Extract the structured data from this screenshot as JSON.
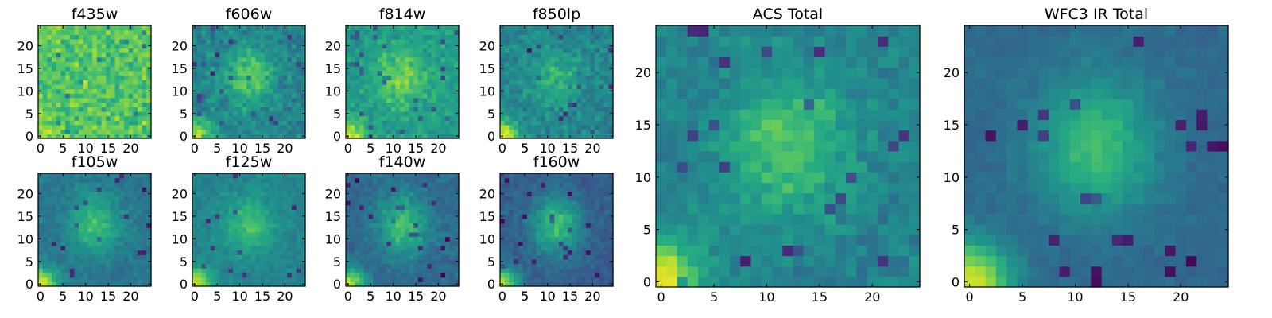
{
  "chart_data": [
    {
      "type": "heatmap",
      "title": "f435w",
      "grid": [
        25,
        25
      ],
      "colormap": "viridis",
      "xticks": [
        0,
        5,
        10,
        15,
        20
      ],
      "yticks": [
        0,
        5,
        10,
        15,
        20
      ],
      "xlim": [
        -0.5,
        24.5
      ],
      "ylim": [
        -0.5,
        24.5
      ],
      "features": {
        "background": 0.74,
        "noise": 0.18,
        "blob": 0.0,
        "corner": 0.12
      }
    },
    {
      "type": "heatmap",
      "title": "f606w",
      "grid": [
        25,
        25
      ],
      "colormap": "viridis",
      "xticks": [
        0,
        5,
        10,
        15,
        20
      ],
      "yticks": [
        0,
        5,
        10,
        15,
        20
      ],
      "xlim": [
        -0.5,
        24.5
      ],
      "ylim": [
        -0.5,
        24.5
      ],
      "features": {
        "background": 0.45,
        "noise": 0.14,
        "blob": 0.3,
        "corner": 0.45
      }
    },
    {
      "type": "heatmap",
      "title": "f814w",
      "grid": [
        25,
        25
      ],
      "colormap": "viridis",
      "xticks": [
        0,
        5,
        10,
        15,
        20
      ],
      "yticks": [
        0,
        5,
        10,
        15,
        20
      ],
      "xlim": [
        -0.5,
        24.5
      ],
      "ylim": [
        -0.5,
        24.5
      ],
      "features": {
        "background": 0.55,
        "noise": 0.13,
        "blob": 0.25,
        "corner": 0.4
      }
    },
    {
      "type": "heatmap",
      "title": "f850lp",
      "grid": [
        25,
        25
      ],
      "colormap": "viridis",
      "xticks": [
        0,
        5,
        10,
        15,
        20
      ],
      "yticks": [
        0,
        5,
        10,
        15,
        20
      ],
      "xlim": [
        -0.5,
        24.5
      ],
      "ylim": [
        -0.5,
        24.5
      ],
      "features": {
        "background": 0.45,
        "noise": 0.14,
        "blob": 0.2,
        "corner": 0.5
      }
    },
    {
      "type": "heatmap",
      "title": "f105w",
      "grid": [
        25,
        25
      ],
      "colormap": "viridis",
      "xticks": [
        0,
        5,
        10,
        15,
        20
      ],
      "yticks": [
        0,
        5,
        10,
        15,
        20
      ],
      "xlim": [
        -0.5,
        24.5
      ],
      "ylim": [
        -0.5,
        24.5
      ],
      "features": {
        "background": 0.4,
        "noise": 0.08,
        "blob": 0.3,
        "corner": 0.55
      }
    },
    {
      "type": "heatmap",
      "title": "f125w",
      "grid": [
        25,
        25
      ],
      "colormap": "viridis",
      "xticks": [
        0,
        5,
        10,
        15,
        20
      ],
      "yticks": [
        0,
        5,
        10,
        15,
        20
      ],
      "xlim": [
        -0.5,
        24.5
      ],
      "ylim": [
        -0.5,
        24.5
      ],
      "features": {
        "background": 0.45,
        "noise": 0.08,
        "blob": 0.25,
        "corner": 0.5
      }
    },
    {
      "type": "heatmap",
      "title": "f140w",
      "grid": [
        25,
        25
      ],
      "colormap": "viridis",
      "xticks": [
        0,
        5,
        10,
        15,
        20
      ],
      "yticks": [
        0,
        5,
        10,
        15,
        20
      ],
      "xlim": [
        -0.5,
        24.5
      ],
      "ylim": [
        -0.5,
        24.5
      ],
      "features": {
        "background": 0.35,
        "noise": 0.09,
        "blob": 0.35,
        "corner": 0.5
      }
    },
    {
      "type": "heatmap",
      "title": "f160w",
      "grid": [
        25,
        25
      ],
      "colormap": "viridis",
      "xticks": [
        0,
        5,
        10,
        15,
        20
      ],
      "yticks": [
        0,
        5,
        10,
        15,
        20
      ],
      "xlim": [
        -0.5,
        24.5
      ],
      "ylim": [
        -0.5,
        24.5
      ],
      "features": {
        "background": 0.3,
        "noise": 0.08,
        "blob": 0.4,
        "corner": 0.55
      }
    },
    {
      "type": "heatmap",
      "title": "ACS Total",
      "grid": [
        25,
        25
      ],
      "colormap": "viridis",
      "xticks": [
        0,
        5,
        10,
        15,
        20
      ],
      "yticks": [
        0,
        5,
        10,
        15,
        20
      ],
      "xlim": [
        -0.5,
        24.5
      ],
      "ylim": [
        -0.5,
        24.5
      ],
      "features": {
        "background": 0.45,
        "noise": 0.1,
        "blob": 0.3,
        "corner": 0.55
      }
    },
    {
      "type": "heatmap",
      "title": "WFC3 IR Total",
      "grid": [
        25,
        25
      ],
      "colormap": "viridis",
      "xticks": [
        0,
        5,
        10,
        15,
        20
      ],
      "yticks": [
        0,
        5,
        10,
        15,
        20
      ],
      "xlim": [
        -0.5,
        24.5
      ],
      "ylim": [
        -0.5,
        24.5
      ],
      "features": {
        "background": 0.35,
        "noise": 0.05,
        "blob": 0.35,
        "corner": 0.6
      }
    }
  ],
  "colors": {
    "viridis_low": "#440154",
    "viridis_mid": "#21918c",
    "viridis_high": "#fde725"
  }
}
